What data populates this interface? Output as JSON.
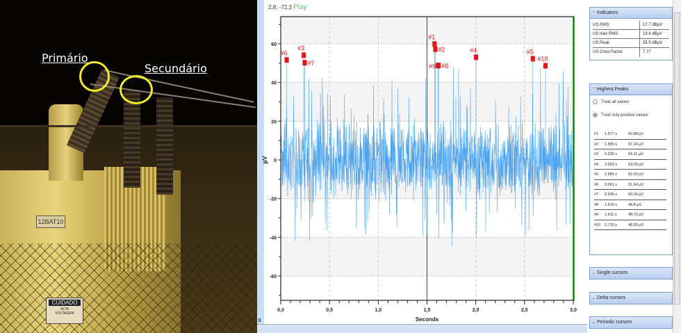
{
  "photo": {
    "label_primary": "Primário",
    "label_secondary": "Secundário",
    "transformer_tag": "12BAT10",
    "sign_title": "CUIDADO",
    "sign_line1": "ALTA",
    "sign_line2": "VOLTAGEM"
  },
  "toolbar": {
    "cursor_readout": "2,8; -72,3",
    "play_label": "Play",
    "close_mark": "x"
  },
  "panel": {
    "indicators": {
      "title": "Indicators",
      "rows": [
        {
          "label": "US RMS",
          "value": "17.7 dBµV"
        },
        {
          "label": "US max RMS",
          "value": "19.4 dBµV"
        },
        {
          "label": "US Peak",
          "value": "35.5 dBµV"
        },
        {
          "label": "US Crest Factor",
          "value": "7.77"
        }
      ]
    },
    "highest_peaks": {
      "title": "Highest Peaks",
      "option_all": "Treat all values",
      "option_positive": "Treat only positive values",
      "selected": "positive"
    },
    "single_cursors": "Single cursors",
    "delta_cursors": "Delta cursors",
    "periodic_cursors": "Periodic cursors"
  },
  "chart_data": {
    "type": "line",
    "xlabel": "Seconds",
    "ylabel": "µV",
    "xlim": [
      0,
      3.0
    ],
    "ylim": [
      -72,
      75
    ],
    "xticks": [
      "0,0",
      "0,5",
      "1,0",
      "1,5",
      "2,0",
      "2,5",
      "3,0"
    ],
    "yticks": [
      "60",
      "40",
      "20",
      "0",
      "-20",
      "-40",
      "-60"
    ],
    "grid": true,
    "series_color": "#4aa3f0",
    "marker_color": "#ee1111",
    "cursor_color": "#22cc22",
    "cursor_x": 3.0,
    "peaks": [
      {
        "label": "#1",
        "time": "1.577 s",
        "value": "59.88 µV",
        "t": 1.577,
        "v": 59.88
      },
      {
        "label": "#2",
        "time": "1.585 s",
        "value": "57.24 µV",
        "t": 1.585,
        "v": 57.24
      },
      {
        "label": "#3",
        "time": "0.236 s",
        "value": "54.11 µV",
        "t": 0.236,
        "v": 54.11
      },
      {
        "label": "#4",
        "time": "2.003 s",
        "value": "53.05 µV",
        "t": 2.003,
        "v": 53.05
      },
      {
        "label": "#5",
        "time": "2.585 s",
        "value": "52.29 µV",
        "t": 2.585,
        "v": 52.29
      },
      {
        "label": "#6",
        "time": "0.061 s",
        "value": "51.64 µV",
        "t": 0.061,
        "v": 51.64
      },
      {
        "label": "#7",
        "time": "0.245 s",
        "value": "50.24 µV",
        "t": 0.245,
        "v": 50.24
      },
      {
        "label": "#8",
        "time": "1.619 s",
        "value": "48.8 µV",
        "t": 1.619,
        "v": 48.8
      },
      {
        "label": "#9",
        "time": "1.611 s",
        "value": "48.73 µV",
        "t": 1.611,
        "v": 48.73
      },
      {
        "label": "#10",
        "time": "2.715 s",
        "value": "48.65 µV",
        "t": 2.715,
        "v": 48.65
      }
    ]
  }
}
